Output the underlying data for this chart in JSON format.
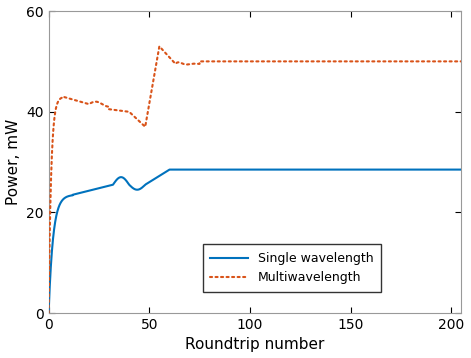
{
  "title": "",
  "xlabel": "Roundtrip number",
  "ylabel": "Power, mW",
  "xlim": [
    0,
    205
  ],
  "ylim": [
    0,
    60
  ],
  "xticks": [
    0,
    50,
    100,
    150,
    200
  ],
  "yticks": [
    0,
    20,
    40,
    60
  ],
  "blue_color": "#0072bd",
  "orange_color": "#d95319",
  "legend_labels": [
    "Single wavelength",
    "Multiwavelength"
  ],
  "blue_linewidth": 1.5,
  "orange_linewidth": 1.5,
  "figsize": [
    4.71,
    3.58
  ],
  "dpi": 100
}
